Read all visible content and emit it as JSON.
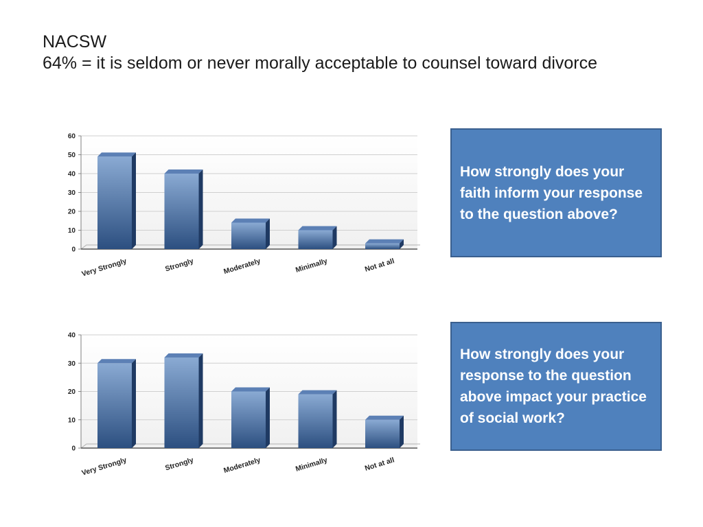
{
  "title": {
    "line1": "NACSW",
    "line2": "64% = it is seldom or never morally acceptable to counsel toward divorce"
  },
  "questions": [
    "How strongly does your faith inform your response to the question above?",
    "How strongly does your response to the question above impact your practice of social work?"
  ],
  "colors": {
    "box_fill": "#4f81bd",
    "box_border": "#3a5f8e",
    "bar_light": "#8aaad3",
    "bar_dark": "#2c4f80",
    "bar_top": "#5c80b5",
    "bar_side": "#1f3a63"
  },
  "chart_data": [
    {
      "type": "bar",
      "title": "",
      "xlabel": "",
      "ylabel": "",
      "categories": [
        "Very Strongly",
        "Strongly",
        "Moderately",
        "Minimally",
        "Not at all"
      ],
      "values": [
        49,
        40,
        14,
        10,
        3
      ],
      "ylim": [
        0,
        60
      ],
      "yticks": [
        0,
        10,
        20,
        30,
        40,
        50,
        60
      ],
      "grid": true
    },
    {
      "type": "bar",
      "title": "",
      "xlabel": "",
      "ylabel": "",
      "categories": [
        "Very Strongly",
        "Strongly",
        "Moderately",
        "Minimally",
        "Not at all"
      ],
      "values": [
        30,
        32,
        20,
        19,
        10
      ],
      "ylim": [
        0,
        40
      ],
      "yticks": [
        0,
        10,
        20,
        30,
        40
      ],
      "grid": true
    }
  ]
}
